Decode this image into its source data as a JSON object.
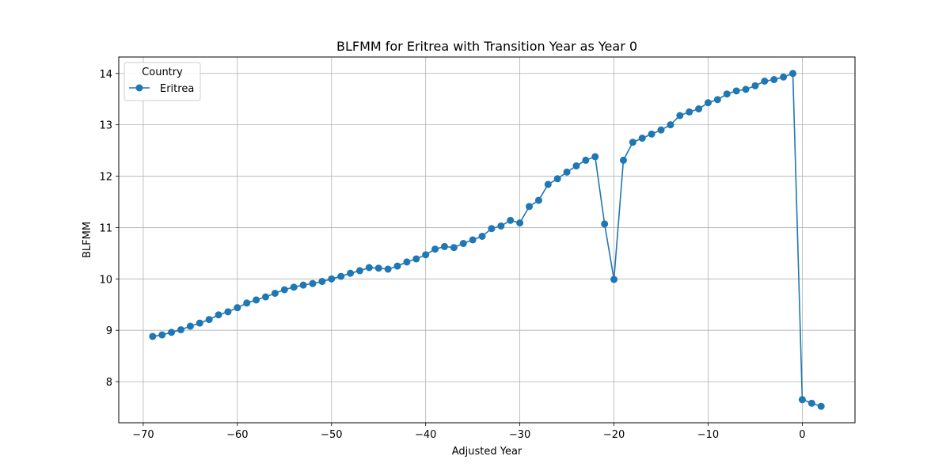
{
  "chart_data": {
    "type": "line",
    "title": "BLFMM for Eritrea with Transition Year as Year 0",
    "xlabel": "Adjusted Year",
    "ylabel": "BLFMM",
    "xlim": [
      -72.6,
      5.6
    ],
    "ylim": [
      7.2,
      14.32
    ],
    "xticks": [
      -70,
      -60,
      -50,
      -40,
      -30,
      -20,
      -10,
      0
    ],
    "xtick_labels": [
      "−70",
      "−60",
      "−50",
      "−40",
      "−30",
      "−20",
      "−10",
      "0"
    ],
    "yticks": [
      8,
      9,
      10,
      11,
      12,
      13,
      14
    ],
    "ytick_labels": [
      "8",
      "9",
      "10",
      "11",
      "12",
      "13",
      "14"
    ],
    "grid": true,
    "legend": {
      "title": "Country",
      "placement": "top-left"
    },
    "series": [
      {
        "name": "Eritrea",
        "color": "#1f77b4",
        "marker": "circle",
        "x": [
          -69,
          -68,
          -67,
          -66,
          -65,
          -64,
          -63,
          -62,
          -61,
          -60,
          -59,
          -58,
          -57,
          -56,
          -55,
          -54,
          -53,
          -52,
          -51,
          -50,
          -49,
          -48,
          -47,
          -46,
          -45,
          -44,
          -43,
          -42,
          -41,
          -40,
          -39,
          -38,
          -37,
          -36,
          -35,
          -34,
          -33,
          -32,
          -31,
          -30,
          -29,
          -28,
          -27,
          -26,
          -25,
          -24,
          -23,
          -22,
          -21,
          -20,
          -19,
          -18,
          -17,
          -16,
          -15,
          -14,
          -13,
          -12,
          -11,
          -10,
          -9,
          -8,
          -7,
          -6,
          -5,
          -4,
          -3,
          -2,
          -1,
          0,
          1,
          2
        ],
        "y": [
          8.88,
          8.91,
          8.96,
          9.01,
          9.08,
          9.14,
          9.21,
          9.3,
          9.36,
          9.44,
          9.53,
          9.59,
          9.65,
          9.72,
          9.79,
          9.84,
          9.88,
          9.91,
          9.95,
          10.0,
          10.05,
          10.11,
          10.16,
          10.22,
          10.21,
          10.19,
          10.25,
          10.33,
          10.39,
          10.47,
          10.58,
          10.63,
          10.61,
          10.69,
          10.76,
          10.83,
          10.98,
          11.03,
          11.14,
          11.09,
          11.41,
          11.53,
          11.84,
          11.95,
          12.08,
          12.2,
          12.31,
          12.38,
          11.07,
          9.99,
          12.31,
          12.66,
          12.74,
          12.82,
          12.9,
          13.0,
          13.18,
          13.25,
          13.31,
          13.43,
          13.49,
          13.6,
          13.66,
          13.69,
          13.76,
          13.85,
          13.88,
          13.93,
          14.0,
          7.65,
          7.58,
          7.52
        ]
      }
    ]
  }
}
